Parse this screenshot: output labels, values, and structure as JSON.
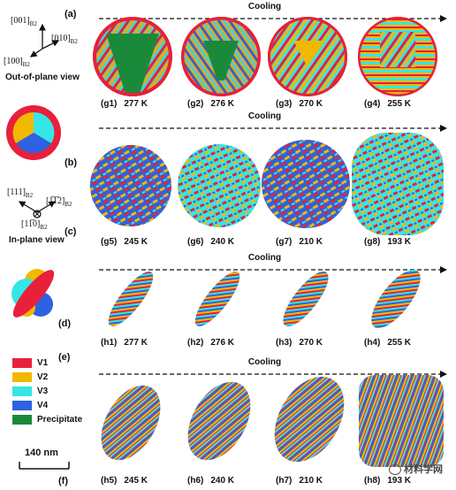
{
  "colors": {
    "V1": "#e8203a",
    "V2": "#f1b800",
    "V3": "#34e6e6",
    "V4": "#2d63e0",
    "Precipitate": "#1a8a3a"
  },
  "panel_letters": {
    "a": "(a)",
    "b": "(b)",
    "c": "(c)",
    "d": "(d)",
    "e": "(e)",
    "f": "(f)"
  },
  "cooling_label": "Cooling",
  "axes_a": {
    "z": "[001]",
    "y": "[010]",
    "x": "[100]",
    "sub": "B2"
  },
  "axes_c": {
    "left": "[111]",
    "right": "[1̅1̅2]",
    "bottom": "[11̅0]",
    "sub": "B2"
  },
  "view_labels": {
    "out_of_plane": "Out-of-plane view",
    "in_plane": "In-plane view"
  },
  "legend": [
    "V1",
    "V2",
    "V3",
    "V4",
    "Precipitate"
  ],
  "scale_bar": "140 nm",
  "watermark": "材料学网",
  "rows": [
    {
      "cells": [
        {
          "id": "(g1)",
          "temp": "277 K"
        },
        {
          "id": "(g2)",
          "temp": "276 K"
        },
        {
          "id": "(g3)",
          "temp": "270 K"
        },
        {
          "id": "(g4)",
          "temp": "255 K"
        }
      ]
    },
    {
      "cells": [
        {
          "id": "(g5)",
          "temp": "245 K"
        },
        {
          "id": "(g6)",
          "temp": "240 K"
        },
        {
          "id": "(g7)",
          "temp": "210 K"
        },
        {
          "id": "(g8)",
          "temp": "193 K"
        }
      ]
    },
    {
      "cells": [
        {
          "id": "(h1)",
          "temp": "277 K"
        },
        {
          "id": "(h2)",
          "temp": "276 K"
        },
        {
          "id": "(h3)",
          "temp": "270 K"
        },
        {
          "id": "(h4)",
          "temp": "255 K"
        }
      ]
    },
    {
      "cells": [
        {
          "id": "(h5)",
          "temp": "245 K"
        },
        {
          "id": "(h6)",
          "temp": "240 K"
        },
        {
          "id": "(h7)",
          "temp": "210 K"
        },
        {
          "id": "(h8)",
          "temp": "193 K"
        }
      ]
    }
  ]
}
